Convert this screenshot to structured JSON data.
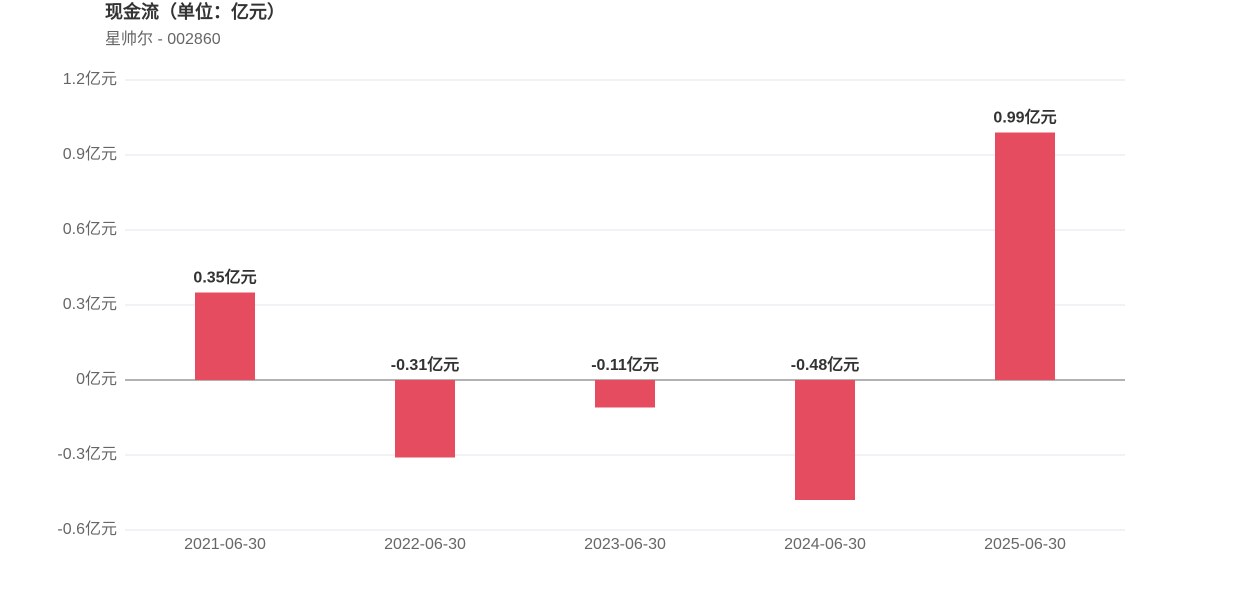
{
  "chart_data": {
    "type": "bar",
    "title": "现金流（单位：亿元）",
    "subtitle": "星帅尔 - 002860",
    "categories": [
      "2021-06-30",
      "2022-06-30",
      "2023-06-30",
      "2024-06-30",
      "2025-06-30"
    ],
    "values": [
      0.35,
      -0.31,
      -0.11,
      -0.48,
      0.99
    ],
    "value_labels": [
      "0.35亿元",
      "-0.31亿元",
      "-0.11亿元",
      "-0.48亿元",
      "0.99亿元"
    ],
    "color": "#e64c60",
    "ylim": [
      -0.6,
      1.2
    ],
    "yticks": [
      {
        "value": -0.6,
        "label": "-0.6亿元"
      },
      {
        "value": -0.3,
        "label": "-0.3亿元"
      },
      {
        "value": 0,
        "label": "0亿元"
      },
      {
        "value": 0.3,
        "label": "0.3亿元"
      },
      {
        "value": 0.6,
        "label": "0.6亿元"
      },
      {
        "value": 0.9,
        "label": "0.9亿元"
      },
      {
        "value": 1.2,
        "label": "1.2亿元"
      }
    ],
    "grid": true
  }
}
